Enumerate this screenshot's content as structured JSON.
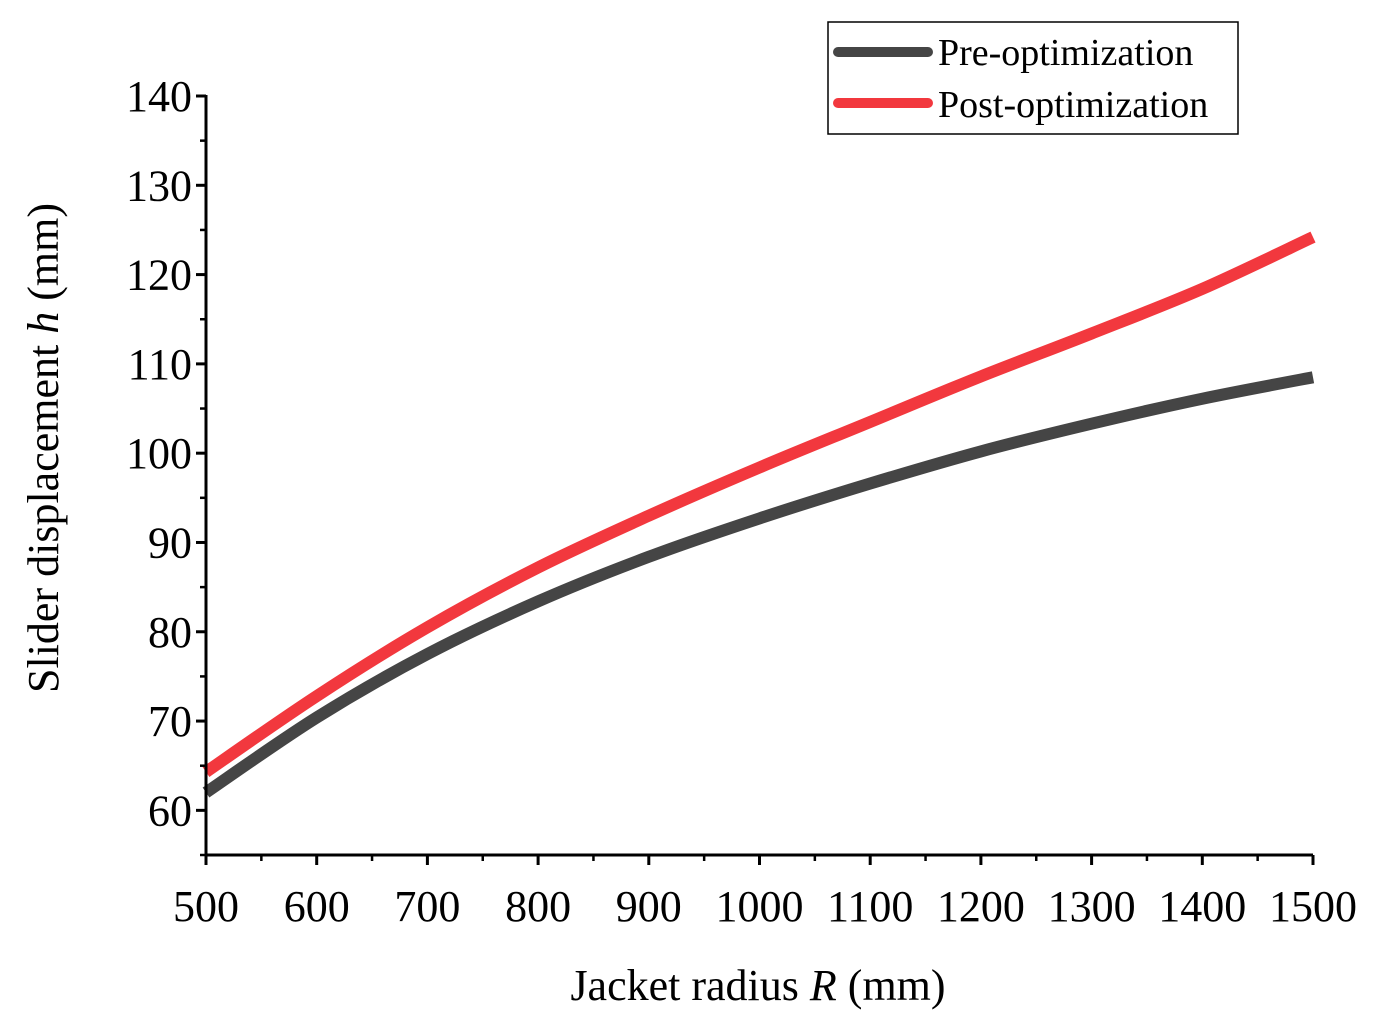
{
  "chart_data": {
    "type": "line",
    "title": "",
    "xlabel": {
      "prefix": "Jacket radius ",
      "symbol": "R",
      "suffix": " (mm)"
    },
    "ylabel": {
      "prefix": "Slider displacement ",
      "symbol": "h",
      "suffix": " (mm)"
    },
    "xlim": [
      500,
      1500
    ],
    "ylim": [
      55,
      140
    ],
    "xticks": [
      500,
      600,
      700,
      800,
      900,
      1000,
      1100,
      1200,
      1300,
      1400,
      1500
    ],
    "yticks": [
      60,
      70,
      80,
      90,
      100,
      110,
      120,
      130,
      140
    ],
    "grid": false,
    "legend_position": "top-right",
    "series": [
      {
        "name": "Pre-optimization",
        "color": "#454545",
        "x": [
          500,
          600,
          700,
          800,
          900,
          1000,
          1100,
          1200,
          1300,
          1400,
          1500
        ],
        "y": [
          62.0,
          70.4,
          77.5,
          83.4,
          88.4,
          92.7,
          96.6,
          100.2,
          103.3,
          106.1,
          108.5
        ]
      },
      {
        "name": "Post-optimization",
        "color": "#f2383e",
        "x": [
          500,
          600,
          700,
          800,
          900,
          1000,
          1100,
          1200,
          1300,
          1400,
          1500
        ],
        "y": [
          64.3,
          72.8,
          80.5,
          87.2,
          93.0,
          98.4,
          103.5,
          108.6,
          113.4,
          118.4,
          124.2
        ]
      }
    ]
  }
}
